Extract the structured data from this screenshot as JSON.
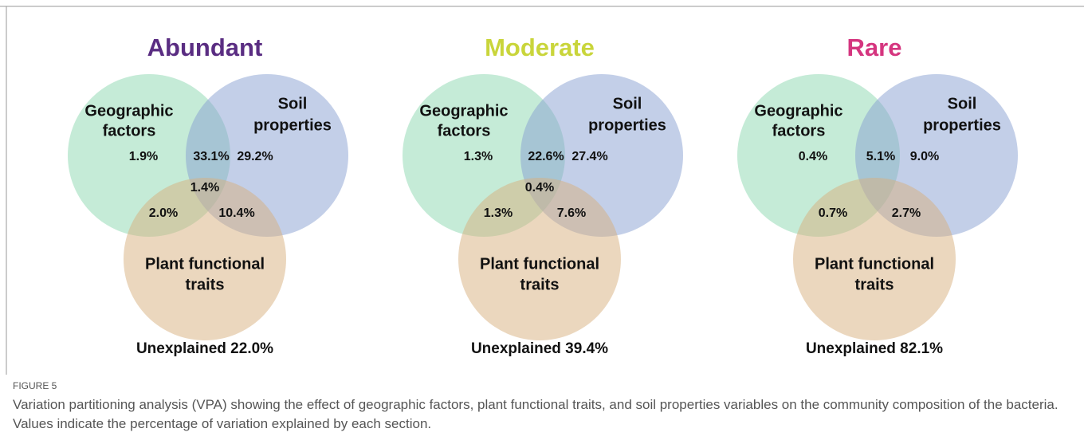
{
  "figure": {
    "panels": [
      {
        "title": "Abundant",
        "color": "#5a2d82",
        "geographic": [
          "Geographic",
          "factors"
        ],
        "soil": [
          "Soil",
          "properties"
        ],
        "plant": [
          "Plant functional",
          "traits"
        ],
        "values": [
          "1.9%",
          "33.1%",
          "29.2%",
          "1.4%",
          "2.0%",
          "10.4%"
        ],
        "unexplained": "Unexplained 22.0%"
      },
      {
        "title": "Moderate",
        "color": "#c9d53b",
        "geographic": [
          "Geographic",
          "factors"
        ],
        "soil": [
          "Soil",
          "properties"
        ],
        "plant": [
          "Plant functional",
          "traits"
        ],
        "values": [
          "1.3%",
          "22.6%",
          "27.4%",
          "0.4%",
          "1.3%",
          "7.6%"
        ],
        "unexplained": "Unexplained 39.4%"
      },
      {
        "title": "Rare",
        "color": "#d5357f",
        "geographic": [
          "Geographic",
          "factors"
        ],
        "soil": [
          "Soil",
          "properties"
        ],
        "plant": [
          "Plant functional",
          "traits"
        ],
        "values": [
          "0.4%",
          "5.1%",
          "9.0%",
          null,
          "0.7%",
          "2.7%"
        ],
        "unexplained": "Unexplained 82.1%"
      }
    ],
    "caption_label": "FIGURE 5",
    "caption": "Variation partitioning analysis (VPA) showing the effect of geographic factors, plant functional traits, and soil properties variables on the community composition of the bacteria. Values indicate the percentage of variation explained by each section."
  }
}
